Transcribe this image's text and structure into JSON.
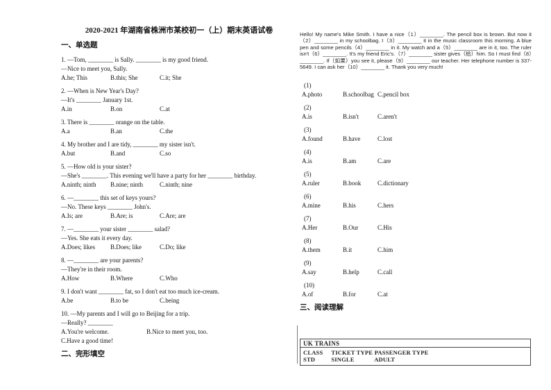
{
  "title": "2020-2021 年湖南省株洲市某校初一（上）期末英语试卷",
  "sections": {
    "one": "一、单选题",
    "two": "二、完形填空",
    "three": "三、阅读理解"
  },
  "single_choice": {
    "questions": [
      {
        "lines": [
          "1. —Tom, ________ is Sally. ________ is my good friend.",
          "—Nice to meet you, Sally."
        ],
        "options": [
          "A.he; This",
          "B.this; She",
          "C.it; She"
        ]
      },
      {
        "lines": [
          "2. —When is New Year's Day?",
          "—It's ________ January 1st."
        ],
        "options": [
          "A.in",
          "B.on",
          "C.at"
        ]
      },
      {
        "lines": [
          "3. There is ________ orange on the table."
        ],
        "options": [
          "A.a",
          "B.an",
          "C.the"
        ]
      },
      {
        "lines": [
          "4. My brother and I are tidy, ________ my sister isn't."
        ],
        "options": [
          "A.but",
          "B.and",
          "C.so"
        ]
      },
      {
        "lines": [
          "5. —How old is your sister?",
          "—She's ________. This evening we'll have a party for her ________ birthday."
        ],
        "options": [
          "A.ninth; ninth",
          "B.nine; ninth",
          "C.ninth; nine"
        ]
      },
      {
        "lines": [
          "6. —________ this set of keys yours?",
          "—No. These keys ________ John's."
        ],
        "options": [
          "A.Is; are",
          "B.Are; is",
          "C.Are; are"
        ]
      },
      {
        "lines": [
          "7. —________ your sister ________ salad?",
          "—Yes. She eats it every day."
        ],
        "options": [
          "A.Does; likes",
          "B.Does; like",
          "C.Do; like"
        ]
      },
      {
        "lines": [
          "8. —________ are your parents?",
          "—They're in their room."
        ],
        "options": [
          "A.How",
          "B.Where",
          "C.Who"
        ]
      },
      {
        "lines": [
          "9. I don't want ________ fat, so I don't eat too much ice-cream."
        ],
        "options": [
          "A.be",
          "B.to be",
          "C.being"
        ]
      },
      {
        "lines": [
          "10. —My parents and I will go to Beijing for a trip.",
          "—Really? ________"
        ],
        "options": [
          "A.You're welcome.",
          "B.Nice to meet you, too.",
          "C.Have a good time!"
        ],
        "layout": "wide"
      }
    ]
  },
  "cloze": {
    "passage": "Hello! My name's Mike Smith. I have a nice（1）________. The pencil box is brown. But now it（2）________ in my schoolbag. I（3）________ it in the music classroom this morning. A blue pen and some pencils（4）________ in it. My watch and a（5）________ are in it, too. The ruler isn't（6）________. It's my friend Eric's.（7）________ sister gives（给）him. So I must find（8）________. If（如果）you see it, please（9）________ our teacher. Her telephone number is 337-5649. I can ask her（10）________ it. Thank you very much!",
    "items": [
      {
        "num": "(1)",
        "options": [
          "A.photo",
          "B.schoolbag",
          "C.pencil box"
        ]
      },
      {
        "num": "(2)",
        "options": [
          "A.is",
          "B.isn't",
          "C.aren't"
        ]
      },
      {
        "num": "(3)",
        "options": [
          "A.found",
          "B.have",
          "C.lost"
        ]
      },
      {
        "num": "(4)",
        "options": [
          "A.is",
          "B.am",
          "C.are"
        ]
      },
      {
        "num": "(5)",
        "options": [
          "A.ruler",
          "B.book",
          "C.dictionary"
        ]
      },
      {
        "num": "(6)",
        "options": [
          "A.mine",
          "B.his",
          "C.hers"
        ]
      },
      {
        "num": "(7)",
        "options": [
          "A.Her",
          "B.Our",
          "C.His"
        ]
      },
      {
        "num": "(8)",
        "options": [
          "A.them",
          "B.it",
          "C.him"
        ]
      },
      {
        "num": "(9)",
        "options": [
          "A.say",
          "B.help",
          "C.call"
        ]
      },
      {
        "num": "(10)",
        "options": [
          "A.of",
          "B.for",
          "C.at"
        ]
      }
    ]
  },
  "reading": {
    "table": {
      "title": "UK TRAINS",
      "header": [
        "CLASS",
        "TICKET TYPE",
        "PASSENGER TYPE"
      ],
      "row": [
        "STD",
        "SINGLE",
        "ADULT"
      ]
    }
  }
}
